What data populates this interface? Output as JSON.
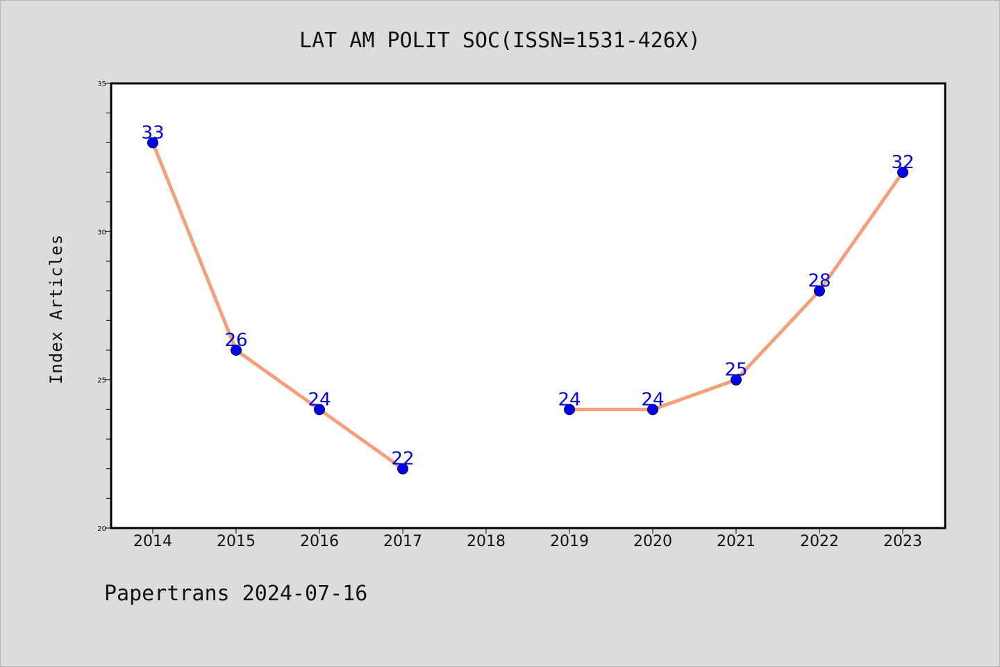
{
  "chart_data": {
    "type": "line",
    "title": "LAT AM POLIT SOC(ISSN=1531-426X)",
    "ylabel": "Index Articles",
    "xlabel": "",
    "categories": [
      "2014",
      "2015",
      "2016",
      "2017",
      "2018",
      "2019",
      "2020",
      "2021",
      "2022",
      "2023"
    ],
    "series": [
      {
        "values": [
          33,
          26,
          24,
          22,
          null,
          24,
          24,
          25,
          28,
          32
        ]
      }
    ],
    "ylim": [
      20,
      35
    ],
    "yticks": [
      "20",
      "25",
      "30",
      "35"
    ],
    "grid": false,
    "line_color": "#f4a07a",
    "marker_color": "#0000ee",
    "label_color": "#0000dd",
    "background_color": "#dcdcdc",
    "plot_background": "#ffffff"
  },
  "footer": {
    "text": "Papertrans 2024-07-16"
  }
}
